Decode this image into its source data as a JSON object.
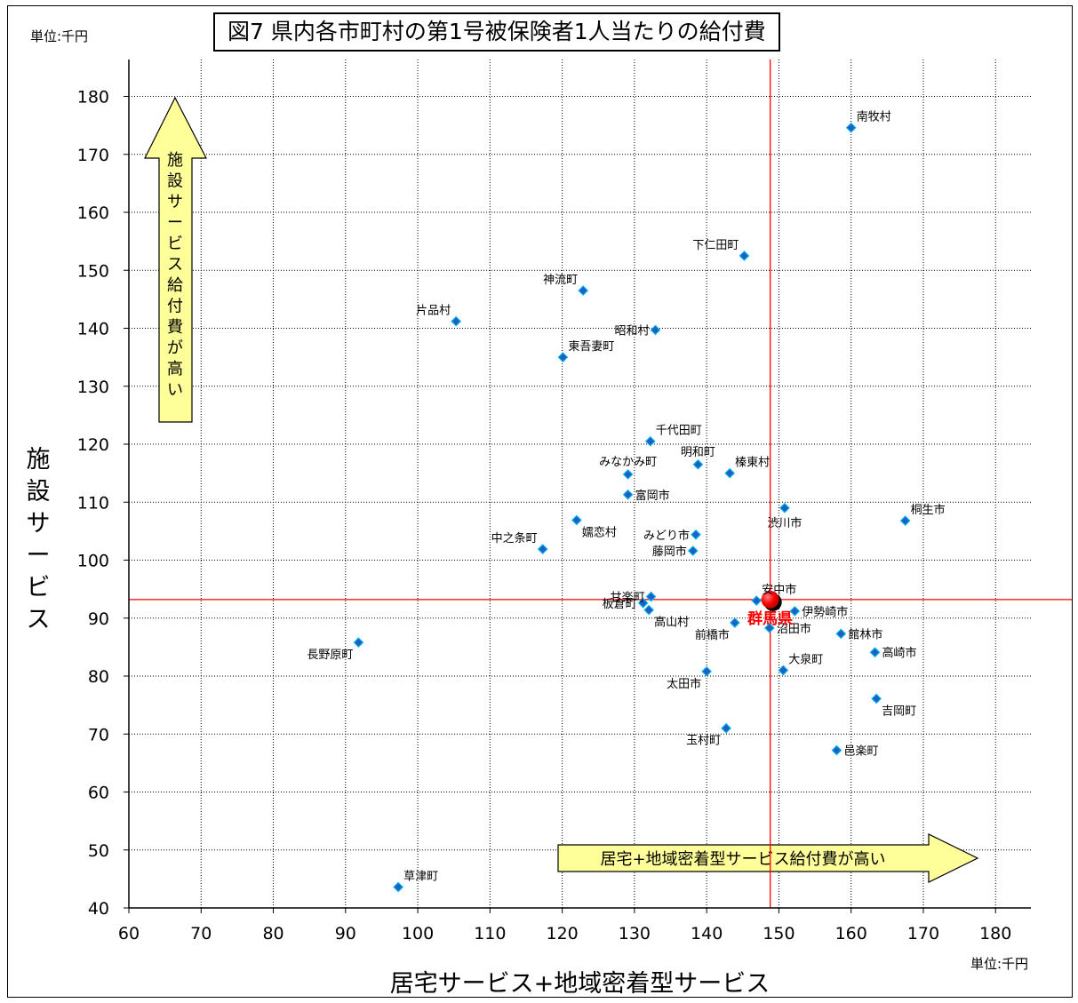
{
  "title": "図7 県内各市町村の第1号被保険者1人当たりの給付費",
  "unit_left": "単位:千円",
  "unit_right": "単位:千円",
  "ylabel_chars": [
    "施",
    "設",
    "サ",
    "ー",
    "ビ",
    "ス"
  ],
  "xlabel": "居宅サービス+地域密着型サービス",
  "annotations": {
    "up_arrow_chars": [
      "施",
      "設",
      "サ",
      "ー",
      "ビ",
      "ス",
      "給",
      "付",
      "費",
      "が",
      "高",
      "い"
    ],
    "right_arrow": "居宅+地域密着型サービス給付費が高い"
  },
  "colors": {
    "marker": "#1f5fbf",
    "marker_border": "#00b0f0",
    "highlight": "#ff0000",
    "reference_line": "#ff0000",
    "arrow_fill": "#ffff99"
  },
  "chart_data": {
    "type": "scatter",
    "xlim": [
      60,
      185
    ],
    "ylim": [
      40,
      185
    ],
    "xticks": [
      60,
      70,
      80,
      90,
      100,
      110,
      120,
      130,
      140,
      150,
      160,
      170,
      180
    ],
    "yticks": [
      40,
      50,
      60,
      70,
      80,
      90,
      100,
      110,
      120,
      130,
      140,
      150,
      160,
      170,
      180
    ],
    "grid": true,
    "reference_lines": {
      "x": 148.8,
      "y": 93.2
    },
    "points": [
      {
        "name": "南牧村",
        "x": 160.0,
        "y": 174.6,
        "label_pos": "upper-right"
      },
      {
        "name": "下仁田町",
        "x": 145.2,
        "y": 152.5,
        "label_pos": "upper-left"
      },
      {
        "name": "神流町",
        "x": 122.9,
        "y": 146.5,
        "label_pos": "upper-left"
      },
      {
        "name": "片品村",
        "x": 105.3,
        "y": 141.2,
        "label_pos": "upper-left"
      },
      {
        "name": "昭和村",
        "x": 132.9,
        "y": 139.7,
        "label_pos": "left"
      },
      {
        "name": "東吾妻町",
        "x": 120.1,
        "y": 135.0,
        "label_pos": "upper-right"
      },
      {
        "name": "千代田町",
        "x": 132.2,
        "y": 120.5,
        "label_pos": "upper-right"
      },
      {
        "name": "明和町",
        "x": 138.8,
        "y": 116.5,
        "label_pos": "upper-center"
      },
      {
        "name": "榛東村",
        "x": 143.2,
        "y": 115.0,
        "label_pos": "upper-right"
      },
      {
        "name": "みなかみ町",
        "x": 129.1,
        "y": 114.8,
        "label_pos": "upper-center"
      },
      {
        "name": "富岡市",
        "x": 129.1,
        "y": 111.3,
        "label_pos": "right"
      },
      {
        "name": "渋川市",
        "x": 150.8,
        "y": 109.0,
        "label_pos": "lower-center"
      },
      {
        "name": "桐生市",
        "x": 167.5,
        "y": 106.8,
        "label_pos": "upper-right"
      },
      {
        "name": "嬬恋村",
        "x": 122.0,
        "y": 106.9,
        "label_pos": "lower-right"
      },
      {
        "name": "みどり市",
        "x": 138.5,
        "y": 104.4,
        "label_pos": "left"
      },
      {
        "name": "中之条町",
        "x": 117.3,
        "y": 101.9,
        "label_pos": "upper-left"
      },
      {
        "name": "藤岡市",
        "x": 138.1,
        "y": 101.6,
        "label_pos": "left"
      },
      {
        "name": "安中市",
        "x": 146.9,
        "y": 93.0,
        "label_pos": "upper-right"
      },
      {
        "name": "甘楽町",
        "x": 132.3,
        "y": 93.7,
        "label_pos": "left"
      },
      {
        "name": "板倉町",
        "x": 131.2,
        "y": 92.6,
        "label_pos": "left"
      },
      {
        "name": "高山村",
        "x": 132.0,
        "y": 91.4,
        "label_pos": "lower-right"
      },
      {
        "name": "伊勢崎市",
        "x": 152.2,
        "y": 91.2,
        "label_pos": "right"
      },
      {
        "name": "前橋市",
        "x": 143.9,
        "y": 89.2,
        "label_pos": "lower-left"
      },
      {
        "name": "沼田市",
        "x": 148.7,
        "y": 88.3,
        "label_pos": "right"
      },
      {
        "name": "館林市",
        "x": 158.6,
        "y": 87.3,
        "label_pos": "right"
      },
      {
        "name": "高崎市",
        "x": 163.3,
        "y": 84.1,
        "label_pos": "right"
      },
      {
        "name": "長野原町",
        "x": 91.8,
        "y": 85.8,
        "label_pos": "lower-left"
      },
      {
        "name": "大泉町",
        "x": 150.6,
        "y": 81.0,
        "label_pos": "upper-right"
      },
      {
        "name": "太田市",
        "x": 140.0,
        "y": 80.8,
        "label_pos": "lower-left"
      },
      {
        "name": "吉岡町",
        "x": 163.5,
        "y": 76.1,
        "label_pos": "lower-right"
      },
      {
        "name": "玉村町",
        "x": 142.7,
        "y": 71.0,
        "label_pos": "lower-left"
      },
      {
        "name": "邑楽町",
        "x": 158.0,
        "y": 67.2,
        "label_pos": "right"
      },
      {
        "name": "草津町",
        "x": 97.3,
        "y": 43.6,
        "label_pos": "upper-right"
      }
    ],
    "highlight_point": {
      "name": "群馬県",
      "x": 148.8,
      "y": 93.2
    }
  }
}
